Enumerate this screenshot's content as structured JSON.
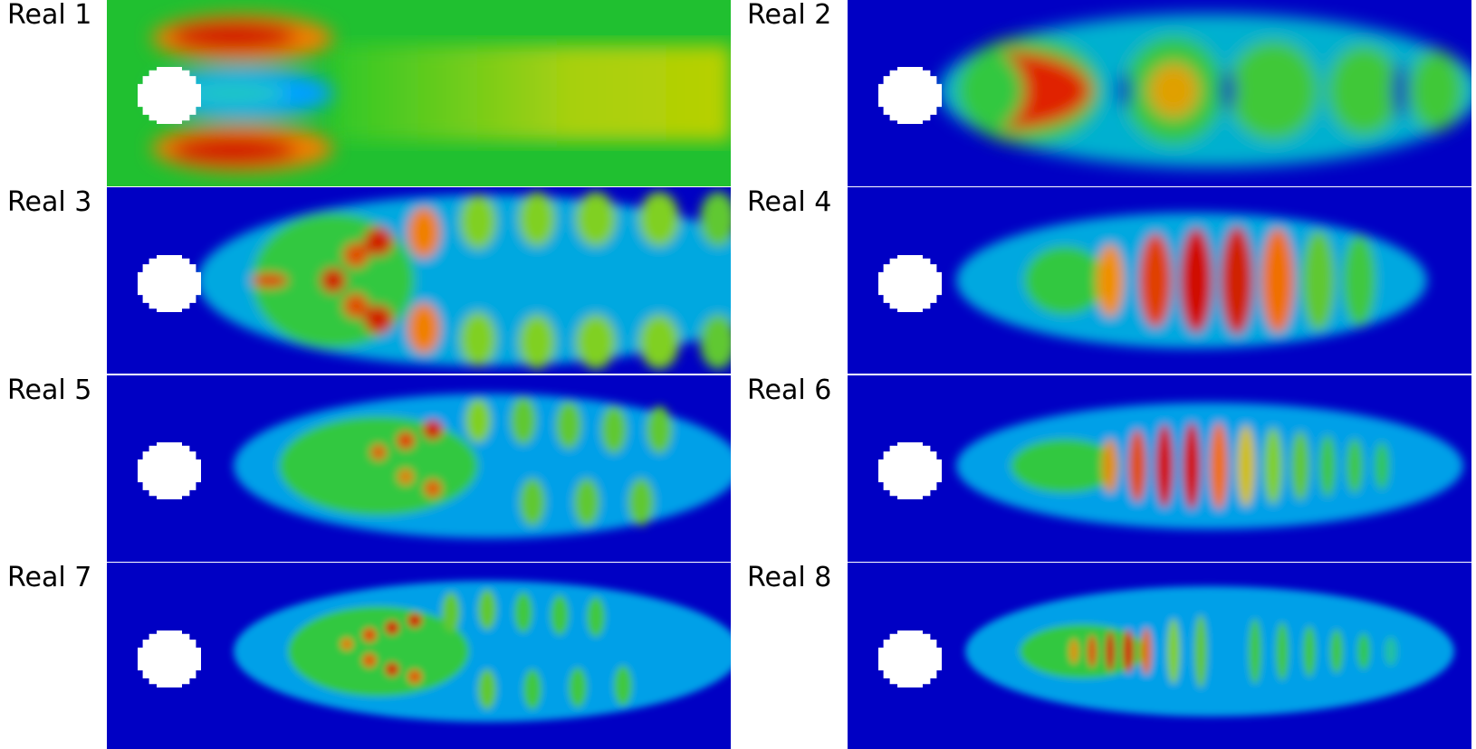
{
  "panels": [
    {
      "label": "Real 1",
      "background": "#22c02a"
    },
    {
      "label": "Real 2",
      "background": "#0000c4"
    },
    {
      "label": "Real 3",
      "background": "#0000c4"
    },
    {
      "label": "Real 4",
      "background": "#0000c4"
    },
    {
      "label": "Real 5",
      "background": "#0000c4"
    },
    {
      "label": "Real 6",
      "background": "#0000c4"
    },
    {
      "label": "Real 7",
      "background": "#0000c4"
    },
    {
      "label": "Real 8",
      "background": "#0000c4"
    }
  ],
  "colormap": [
    "#0000c4",
    "#00a0ff",
    "#20c830",
    "#c8d800",
    "#f08000",
    "#d00000"
  ]
}
